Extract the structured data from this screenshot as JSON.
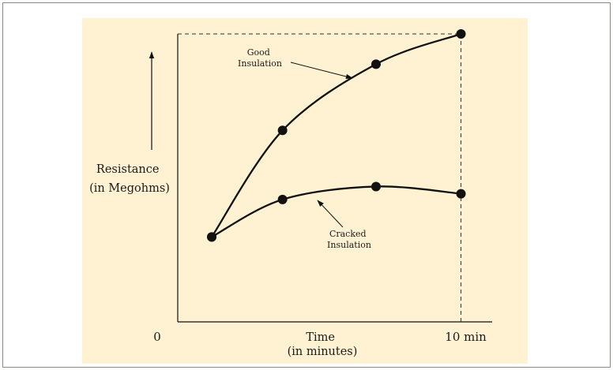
{
  "chart_data": {
    "type": "line",
    "background": "#fef2d2",
    "y_axis_label": [
      "Resistance",
      "(in Megohms)"
    ],
    "x_axis_label": [
      "Time",
      "(in minutes)"
    ],
    "x_ticks": [
      {
        "value": 0,
        "label": "0"
      },
      {
        "value": 10,
        "label": "10 min"
      }
    ],
    "xlim": [
      0,
      11.1
    ],
    "ylim": [
      0,
      100
    ],
    "series": [
      {
        "name": "Good Insulation",
        "label_lines": [
          "Good",
          "Insulation"
        ],
        "points": [
          [
            1.2,
            29.5
          ],
          [
            3.7,
            66.5
          ],
          [
            7.0,
            89.5
          ],
          [
            10.0,
            100.0
          ]
        ]
      },
      {
        "name": "Cracked Insulation",
        "label_lines": [
          "Cracked",
          "Insulation"
        ],
        "points": [
          [
            1.2,
            29.5
          ],
          [
            3.7,
            42.5
          ],
          [
            7.0,
            47.0
          ],
          [
            10.0,
            44.5
          ]
        ]
      }
    ]
  }
}
